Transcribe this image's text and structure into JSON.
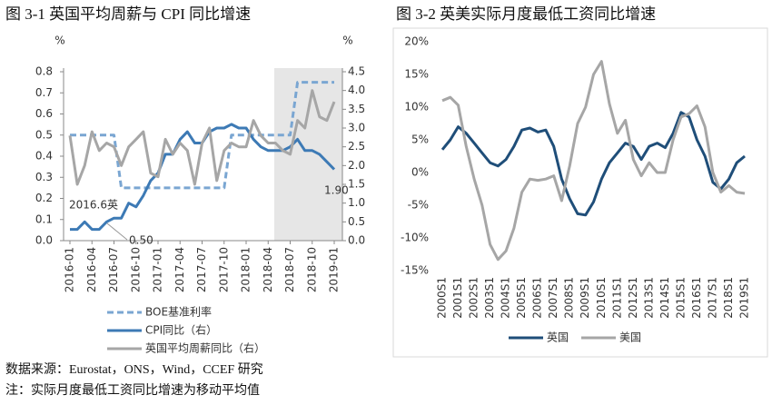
{
  "chart_data": [
    {
      "type": "line",
      "title": "图 3-1 英国平均周薪与 CPI 同比增速",
      "y_label": "%",
      "y2_label": "%",
      "categories": [
        "2016-01",
        null,
        null,
        "2016-04",
        null,
        null,
        "2016-07",
        null,
        null,
        "2016-10",
        null,
        null,
        "2017-01",
        null,
        null,
        "2017-04",
        null,
        null,
        "2017-07",
        null,
        null,
        "2017-10",
        null,
        null,
        "2018-01",
        null,
        null,
        "2018-04",
        null,
        null,
        "2018-07",
        null,
        null,
        "2018-10",
        null,
        null,
        "2019-01"
      ],
      "ylim": [
        0,
        0.8
      ],
      "yticks": [
        {
          "value": 0,
          "label": "0.0"
        },
        0.1,
        0.2,
        0.3,
        0.4,
        0.5,
        0.6,
        0.7,
        0.8
      ],
      "y2lim": [
        0,
        4.5
      ],
      "y2ticks": [
        {
          "value": 0,
          "label": "0.0"
        },
        0.5,
        {
          "value": 1,
          "label": "1.0"
        },
        1.5,
        {
          "value": 2,
          "label": "2.0"
        },
        2.5,
        {
          "value": 3,
          "label": "3.0"
        },
        3.5,
        {
          "value": 4,
          "label": "4.0"
        },
        4.5
      ],
      "series": [
        {
          "name": "BOE基准利率",
          "color": "#7aa6d2",
          "dash": true,
          "values": [
            0.5,
            0.5,
            0.5,
            0.5,
            0.5,
            0.5,
            0.5,
            0.25,
            0.25,
            0.25,
            0.25,
            0.25,
            0.25,
            0.25,
            0.25,
            0.25,
            0.25,
            0.25,
            0.25,
            0.25,
            0.25,
            0.25,
            0.5,
            0.5,
            0.5,
            0.5,
            0.5,
            0.5,
            0.5,
            0.5,
            0.5,
            0.75,
            0.75,
            0.75,
            0.75,
            0.75,
            0.75
          ]
        },
        {
          "name": "CPI同比（右）",
          "color": "#3d7ab5",
          "axis": "y2",
          "values": [
            0.3,
            0.3,
            0.5,
            0.3,
            0.3,
            0.5,
            0.6,
            0.6,
            1.0,
            0.9,
            1.2,
            1.6,
            1.8,
            2.3,
            2.3,
            2.7,
            2.9,
            2.6,
            2.6,
            2.9,
            3.0,
            3.0,
            3.1,
            3.0,
            3.0,
            2.7,
            2.5,
            2.4,
            2.4,
            2.4,
            2.5,
            2.7,
            2.4,
            2.4,
            2.3,
            2.1,
            1.9
          ]
        },
        {
          "name": "英国平均周薪同比（右）",
          "color": "#a6a6a6",
          "axis": "y2",
          "values": [
            2.8,
            1.5,
            2.0,
            2.9,
            2.4,
            2.6,
            2.5,
            2.0,
            2.5,
            2.7,
            2.9,
            1.8,
            1.7,
            2.7,
            2.3,
            2.6,
            2.4,
            1.5,
            2.6,
            3.0,
            1.6,
            2.4,
            2.6,
            2.5,
            2.5,
            3.2,
            2.8,
            2.6,
            2.6,
            2.4,
            2.3,
            3.2,
            3.0,
            4.0,
            3.3,
            3.2,
            3.7
          ]
        }
      ],
      "annotations": [
        "2016.6英",
        "0.50",
        "1.90"
      ]
    },
    {
      "type": "line",
      "title": "图 3-2 英美实际月度最低工资同比增速",
      "categories": [
        "2000S1",
        null,
        "2001S1",
        null,
        "2002S1",
        null,
        "2003S1",
        null,
        "2004S1",
        null,
        "2005S1",
        null,
        "2006S1",
        null,
        "2007S1",
        null,
        "2008S1",
        null,
        "2009S1",
        null,
        "2010S1",
        null,
        "2011S1",
        null,
        "2012S1",
        null,
        "2013S1",
        null,
        "2014S1",
        null,
        "2015S1",
        null,
        "2016S1",
        null,
        "2017S1",
        null,
        "2018S1",
        null,
        "2019S1"
      ],
      "ylim": [
        -15,
        20
      ],
      "yticks": [
        {
          "value": -15,
          "label": "-15%"
        },
        {
          "value": -10,
          "label": "-10%"
        },
        {
          "value": -5,
          "label": "-5%"
        },
        {
          "value": 0,
          "label": "0%"
        },
        {
          "value": 5,
          "label": "5%"
        },
        {
          "value": 10,
          "label": "10%"
        },
        {
          "value": 15,
          "label": "15%"
        },
        {
          "value": 20,
          "label": "20%"
        }
      ],
      "series": [
        {
          "name": "英国",
          "color": "#1f4e79",
          "values": [
            3.5,
            5,
            7,
            6,
            4.5,
            3,
            1.5,
            1,
            2,
            4,
            6.5,
            6.8,
            6.2,
            6.5,
            4,
            -1,
            -4,
            -6.3,
            -6.5,
            -4.5,
            -1,
            1.5,
            3,
            4.5,
            4,
            2,
            4,
            4.5,
            3.8,
            6,
            9.2,
            8.5,
            5,
            2.5,
            -1.5,
            -2.5,
            -1,
            1.5,
            2.5
          ]
        },
        {
          "name": "美国",
          "color": "#a6a6a6",
          "values": [
            11,
            11.5,
            10.3,
            4,
            -1,
            -5,
            -11,
            -13.3,
            -12,
            -8.5,
            -3,
            -1,
            -1.2,
            -1,
            -0.5,
            -4.3,
            1,
            7.5,
            10,
            15,
            17,
            10.5,
            6,
            8,
            2,
            -0.5,
            1.5,
            0,
            0,
            5,
            8.5,
            9,
            10.2,
            7,
            0,
            -3,
            -2,
            -3,
            -3.2
          ]
        }
      ]
    }
  ],
  "footer": [
    "数据来源：Eurostat，ONS，Wind，CCEF 研究",
    "注：实际月度最低工资同比增速为移动平均值"
  ]
}
